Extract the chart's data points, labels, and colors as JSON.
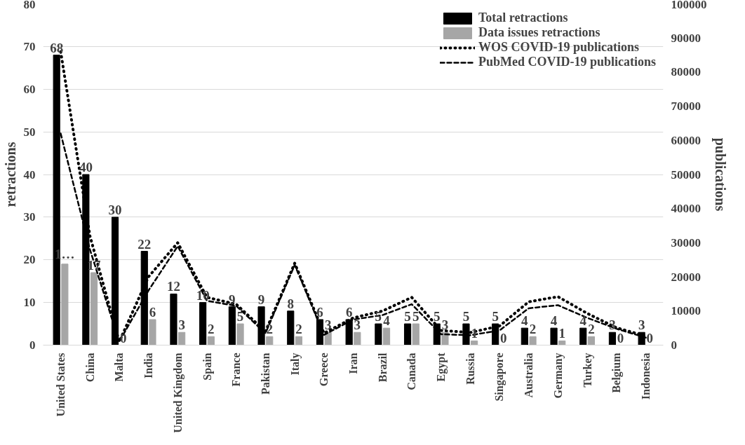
{
  "chart_data": {
    "type": "bar",
    "ylabel": "retractions",
    "y2label": "publications",
    "categories": [
      "United States",
      "China",
      "Malta",
      "India",
      "United Kingdom",
      "Spain",
      "France",
      "Pakistan",
      "Italy",
      "Greece",
      "Iran",
      "Brazil",
      "Canada",
      "Egypt",
      "Russia",
      "Singapore",
      "Australia",
      "Germany",
      "Turkey",
      "Belgium",
      "Indonesia"
    ],
    "series": [
      {
        "name": "Total retractions",
        "color": "#000000",
        "values": [
          68,
          40,
          30,
          22,
          12,
          10,
          9,
          9,
          8,
          6,
          6,
          5,
          5,
          5,
          5,
          5,
          4,
          4,
          4,
          3,
          3
        ],
        "value_labels": [
          "68",
          "40",
          "30",
          "22",
          "12",
          "10",
          "9",
          "9",
          "8",
          "6",
          "6",
          "5",
          "5",
          "5",
          "5",
          "5",
          "4",
          "4",
          "4",
          "3",
          "3"
        ]
      },
      {
        "name": "Data issues retractions",
        "color": "#a6a6a6",
        "values": [
          19,
          17,
          0,
          6,
          3,
          2,
          5,
          2,
          2,
          3,
          3,
          4,
          5,
          3,
          1,
          0,
          2,
          1,
          2,
          0,
          0
        ],
        "value_labels": [
          "1…",
          "17",
          "0",
          "6",
          "3",
          "2",
          "5",
          "2",
          "2",
          "3",
          "3",
          "4",
          "5",
          "3",
          "1",
          "0",
          "2",
          "1",
          "2",
          "0",
          "0"
        ]
      },
      {
        "name": "WOS COVID-19 publications",
        "type": "line",
        "axis": "y2",
        "line_style": "dotted",
        "color": "#000000",
        "values": [
          86000,
          32000,
          1000,
          20000,
          30000,
          14000,
          12000,
          4000,
          24000,
          3500,
          8000,
          10000,
          14000,
          4300,
          3700,
          5600,
          12700,
          14200,
          9300,
          5100,
          2700
        ]
      },
      {
        "name": "PubMed COVID-19 publications",
        "type": "line",
        "axis": "y2",
        "line_style": "dashed",
        "color": "#000000",
        "values": [
          62000,
          28000,
          1000,
          16000,
          29000,
          13000,
          11500,
          3500,
          23500,
          3000,
          7500,
          8800,
          12000,
          3200,
          2900,
          4300,
          10800,
          11700,
          8000,
          4800,
          2200
        ]
      }
    ],
    "ylim": [
      0,
      80
    ],
    "yticks": [
      0,
      10,
      20,
      30,
      40,
      50,
      60,
      70,
      80
    ],
    "y2lim": [
      0,
      100000
    ],
    "y2ticks": [
      0,
      10000,
      20000,
      30000,
      40000,
      50000,
      60000,
      70000,
      80000,
      90000,
      100000
    ],
    "grid": "y",
    "legend": "top right"
  }
}
